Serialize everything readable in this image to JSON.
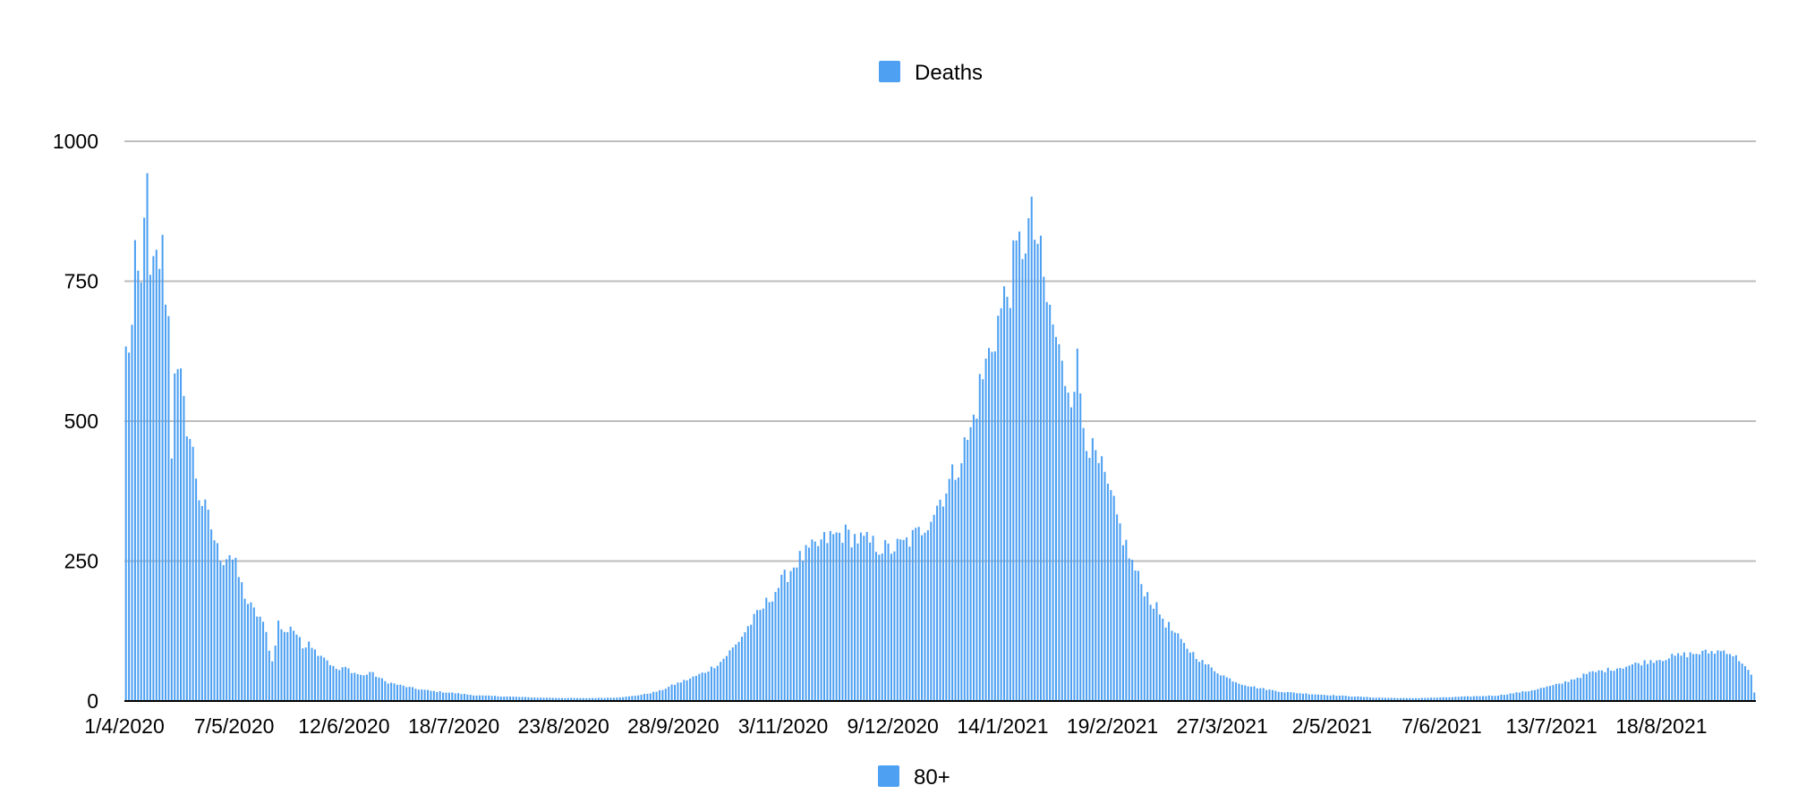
{
  "chart_data": {
    "type": "bar",
    "legend_top": "Deaths",
    "legend_bottom": "80+",
    "legend_placement_top": "top-center",
    "legend_placement_bottom": "bottom-center",
    "ylim": [
      0,
      1000
    ],
    "y_ticks": [
      0,
      250,
      500,
      750,
      1000
    ],
    "grid": true,
    "x_tick_labels": [
      "1/4/2020",
      "7/5/2020",
      "12/6/2020",
      "18/7/2020",
      "23/8/2020",
      "28/9/2020",
      "3/11/2020",
      "9/12/2020",
      "14/1/2021",
      "19/2/2021",
      "27/3/2021",
      "2/5/2021",
      "7/6/2021",
      "13/7/2021",
      "18/8/2021"
    ],
    "x_tick_day_index": [
      0,
      36,
      72,
      108,
      144,
      180,
      216,
      252,
      288,
      324,
      360,
      396,
      432,
      468,
      504
    ],
    "num_days": 535,
    "bar_color": "#4da0f2",
    "series": [
      {
        "name": "Deaths",
        "keypoints_day_value": [
          [
            0,
            620
          ],
          [
            2,
            660
          ],
          [
            3,
            770
          ],
          [
            5,
            730
          ],
          [
            6,
            905
          ],
          [
            7,
            895
          ],
          [
            8,
            740
          ],
          [
            10,
            780
          ],
          [
            12,
            800
          ],
          [
            14,
            680
          ],
          [
            15,
            450
          ],
          [
            16,
            610
          ],
          [
            17,
            570
          ],
          [
            18,
            565
          ],
          [
            19,
            520
          ],
          [
            20,
            500
          ],
          [
            22,
            440
          ],
          [
            24,
            370
          ],
          [
            26,
            340
          ],
          [
            28,
            310
          ],
          [
            30,
            270
          ],
          [
            32,
            255
          ],
          [
            34,
            265
          ],
          [
            36,
            240
          ],
          [
            38,
            205
          ],
          [
            40,
            175
          ],
          [
            42,
            160
          ],
          [
            44,
            150
          ],
          [
            46,
            120
          ],
          [
            48,
            70
          ],
          [
            50,
            140
          ],
          [
            52,
            120
          ],
          [
            54,
            135
          ],
          [
            56,
            120
          ],
          [
            58,
            95
          ],
          [
            60,
            110
          ],
          [
            62,
            90
          ],
          [
            65,
            80
          ],
          [
            68,
            60
          ],
          [
            70,
            55
          ],
          [
            72,
            60
          ],
          [
            75,
            50
          ],
          [
            78,
            45
          ],
          [
            80,
            52
          ],
          [
            85,
            35
          ],
          [
            90,
            28
          ],
          [
            95,
            22
          ],
          [
            100,
            18
          ],
          [
            108,
            14
          ],
          [
            115,
            10
          ],
          [
            125,
            8
          ],
          [
            135,
            6
          ],
          [
            150,
            5
          ],
          [
            160,
            6
          ],
          [
            165,
            8
          ],
          [
            170,
            12
          ],
          [
            175,
            18
          ],
          [
            180,
            30
          ],
          [
            185,
            40
          ],
          [
            190,
            52
          ],
          [
            195,
            70
          ],
          [
            200,
            100
          ],
          [
            205,
            140
          ],
          [
            208,
            160
          ],
          [
            212,
            190
          ],
          [
            216,
            220
          ],
          [
            220,
            250
          ],
          [
            225,
            270
          ],
          [
            230,
            290
          ],
          [
            235,
            300
          ],
          [
            240,
            290
          ],
          [
            245,
            280
          ],
          [
            250,
            270
          ],
          [
            255,
            280
          ],
          [
            260,
            300
          ],
          [
            265,
            340
          ],
          [
            268,
            370
          ],
          [
            271,
            400
          ],
          [
            274,
            440
          ],
          [
            277,
            480
          ],
          [
            280,
            560
          ],
          [
            283,
            620
          ],
          [
            286,
            680
          ],
          [
            289,
            730
          ],
          [
            292,
            790
          ],
          [
            295,
            835
          ],
          [
            297,
            850
          ],
          [
            299,
            820
          ],
          [
            301,
            740
          ],
          [
            303,
            690
          ],
          [
            305,
            650
          ],
          [
            307,
            590
          ],
          [
            310,
            560
          ],
          [
            312,
            600
          ],
          [
            314,
            500
          ],
          [
            317,
            440
          ],
          [
            320,
            410
          ],
          [
            323,
            360
          ],
          [
            326,
            310
          ],
          [
            329,
            260
          ],
          [
            332,
            220
          ],
          [
            335,
            190
          ],
          [
            338,
            165
          ],
          [
            341,
            140
          ],
          [
            344,
            120
          ],
          [
            347,
            100
          ],
          [
            350,
            85
          ],
          [
            353,
            70
          ],
          [
            357,
            55
          ],
          [
            361,
            42
          ],
          [
            365,
            32
          ],
          [
            370,
            25
          ],
          [
            375,
            20
          ],
          [
            380,
            16
          ],
          [
            385,
            14
          ],
          [
            390,
            12
          ],
          [
            400,
            9
          ],
          [
            410,
            6
          ],
          [
            420,
            5
          ],
          [
            430,
            6
          ],
          [
            440,
            8
          ],
          [
            450,
            10
          ],
          [
            460,
            18
          ],
          [
            470,
            30
          ],
          [
            475,
            40
          ],
          [
            480,
            50
          ],
          [
            490,
            60
          ],
          [
            500,
            72
          ],
          [
            510,
            82
          ],
          [
            520,
            88
          ],
          [
            525,
            90
          ],
          [
            530,
            70
          ],
          [
            533,
            45
          ],
          [
            534,
            15
          ]
        ]
      }
    ]
  }
}
